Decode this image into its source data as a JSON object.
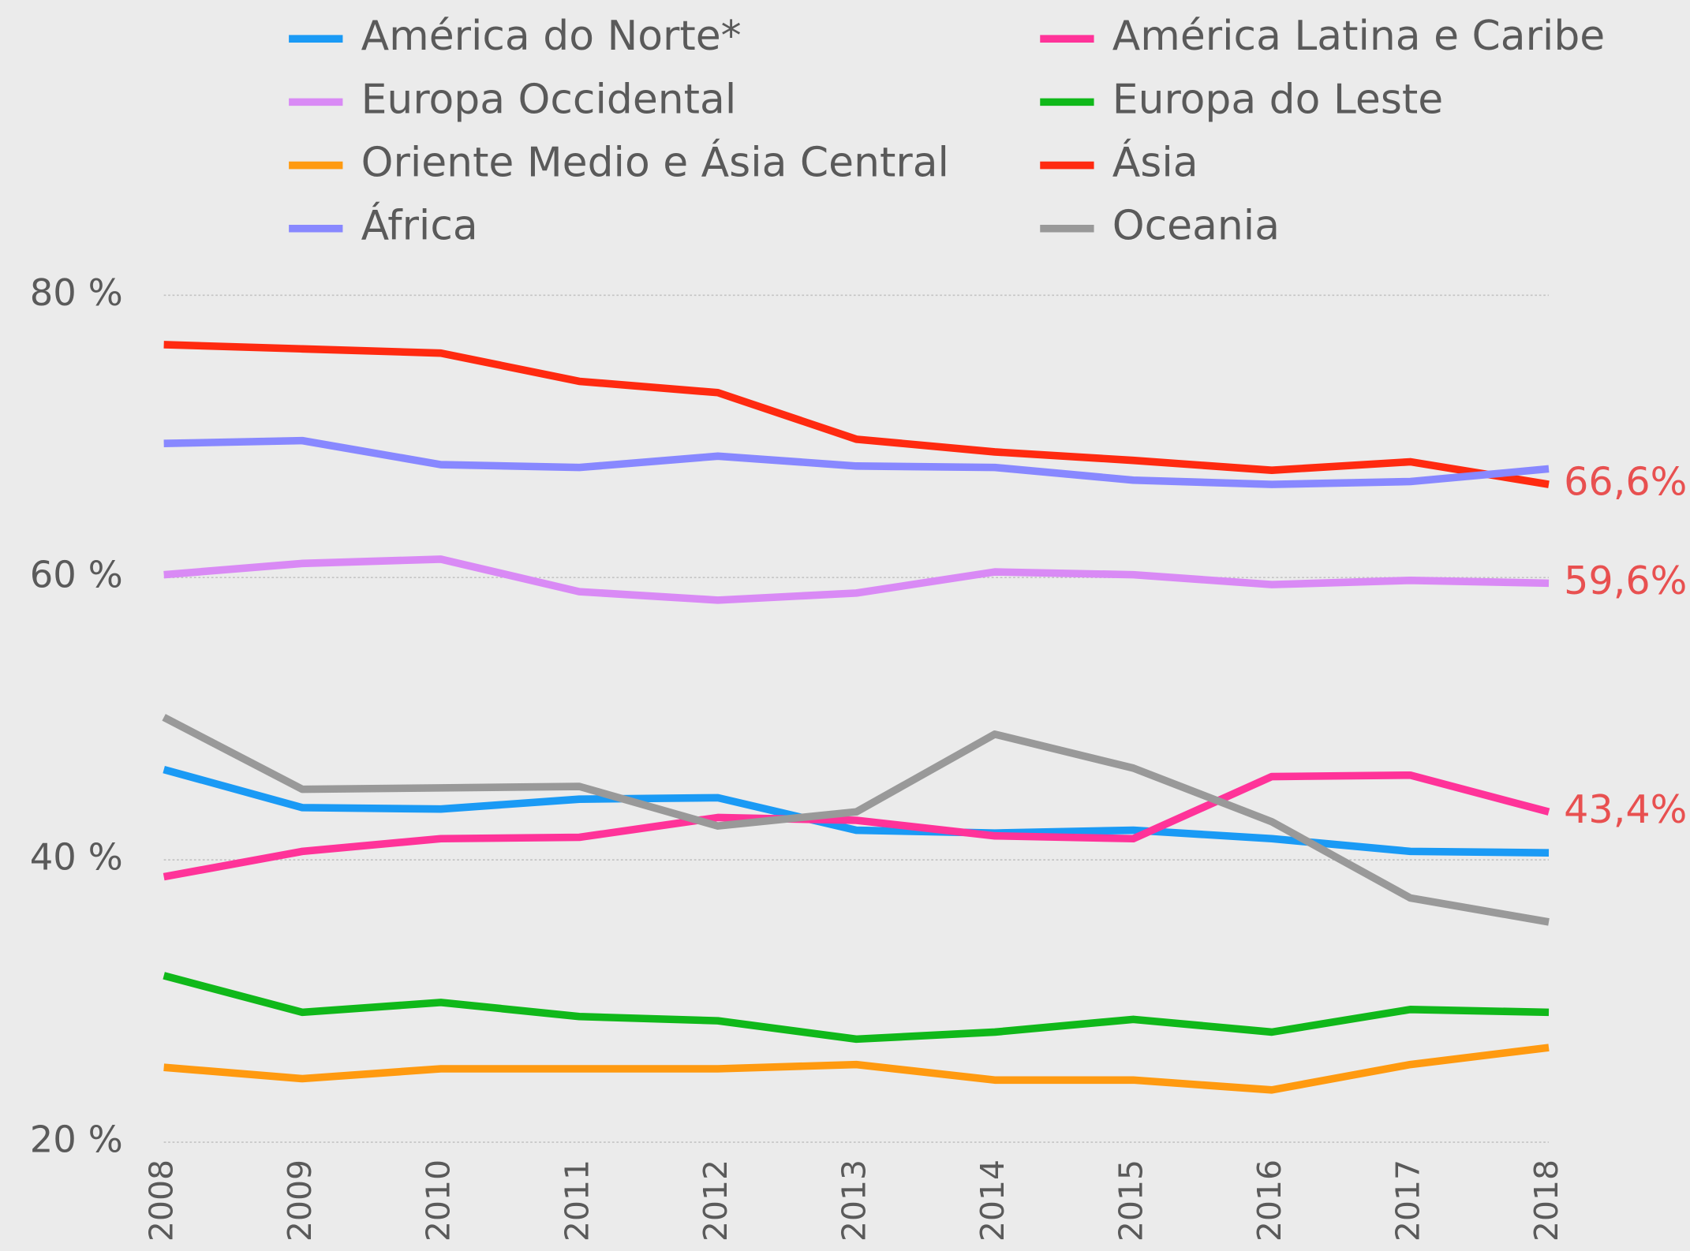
{
  "chart_data": {
    "type": "line",
    "categories": [
      "2008",
      "2009",
      "2010",
      "2011",
      "2012",
      "2013",
      "2014",
      "2015",
      "2016",
      "2017",
      "2018"
    ],
    "ylim": [
      20,
      80
    ],
    "yticks": [
      {
        "value": 20,
        "label": "20 %"
      },
      {
        "value": 40,
        "label": "40 %"
      },
      {
        "value": 60,
        "label": "60 %"
      },
      {
        "value": 80,
        "label": "80 %"
      }
    ],
    "grid": true,
    "legend": "top",
    "series": [
      {
        "name": "América do Norte*",
        "color": "#1a9af5",
        "values": [
          46.4,
          43.7,
          43.6,
          44.3,
          44.4,
          42.1,
          41.9,
          42.1,
          41.5,
          40.6,
          40.5
        ]
      },
      {
        "name": "América Latina e Caribe",
        "color": "#ff3399",
        "values": [
          38.8,
          40.6,
          41.5,
          41.6,
          43.0,
          42.8,
          41.7,
          41.5,
          45.9,
          46.0,
          43.4
        ],
        "value_labels": [
          null,
          null,
          null,
          null,
          null,
          null,
          null,
          null,
          null,
          null,
          "43,4%"
        ]
      },
      {
        "name": "Europa Occidental",
        "color": "#d98af5",
        "values": [
          60.2,
          61.0,
          61.3,
          59.0,
          58.4,
          58.9,
          60.4,
          60.2,
          59.5,
          59.8,
          59.6
        ],
        "value_labels": [
          null,
          null,
          null,
          null,
          null,
          null,
          null,
          null,
          null,
          null,
          "59,6%"
        ]
      },
      {
        "name": "Europa do Leste",
        "color": "#10b81a",
        "values": [
          31.8,
          29.2,
          29.9,
          28.9,
          28.6,
          27.3,
          27.8,
          28.7,
          27.8,
          29.4,
          29.2
        ]
      },
      {
        "name": "Oriente Medio e Ásia Central",
        "color": "#ff9a10",
        "values": [
          25.3,
          24.5,
          25.2,
          25.2,
          25.2,
          25.5,
          24.4,
          24.4,
          23.7,
          25.5,
          26.7
        ]
      },
      {
        "name": "Ásia",
        "color": "#ff2a10",
        "values": [
          76.5,
          76.2,
          75.9,
          73.9,
          73.1,
          69.8,
          68.9,
          68.3,
          67.6,
          68.2,
          66.6
        ],
        "value_labels": [
          null,
          null,
          null,
          null,
          null,
          null,
          null,
          null,
          null,
          null,
          "66,6%"
        ]
      },
      {
        "name": "África",
        "color": "#8888ff",
        "values": [
          69.5,
          69.7,
          68.0,
          67.8,
          68.6,
          67.9,
          67.8,
          66.9,
          66.6,
          66.8,
          67.7
        ]
      },
      {
        "name": "Oceania",
        "color": "#999999",
        "values": [
          50.1,
          45.0,
          45.1,
          45.2,
          42.4,
          43.4,
          48.9,
          46.5,
          42.7,
          37.3,
          35.6
        ]
      }
    ]
  }
}
